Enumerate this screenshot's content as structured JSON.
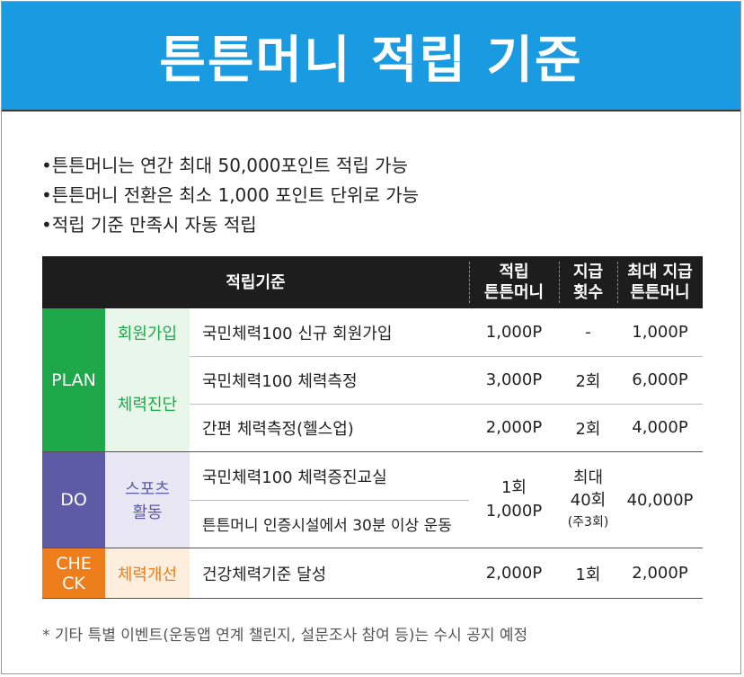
{
  "title": "튼튼머니 적립 기준",
  "bullets": [
    "•튼튼머니는 연간 최대 50,000포인트 적립 가능",
    "•튼튼머니 전환은 최소 1,000 포인트 단위로 가능",
    "•적립 기준 만족시 자동 적립"
  ],
  "table": {
    "headers": {
      "criteria": "적립기준",
      "earn_line1": "적립",
      "earn_line2": "튼튼머니",
      "count_line1": "지급",
      "count_line2": "횟수",
      "max_line1": "최대 지급",
      "max_line2": "튼튼머니"
    },
    "phases": {
      "plan": "PLAN",
      "do": "DO",
      "check_line1": "CHE",
      "check_line2": "CK"
    },
    "categories": {
      "signup": "회원가입",
      "diagnosis": "체력진단",
      "sports_line1": "스포츠",
      "sports_line2": "활동",
      "improve": "체력개선"
    },
    "rows": [
      {
        "content": "국민체력100 신규 회원가입",
        "earn": "1,000P",
        "count": "-",
        "max": "1,000P"
      },
      {
        "content": "국민체력100 체력측정",
        "earn": "3,000P",
        "count": "2회",
        "max": "6,000P"
      },
      {
        "content": "간편 체력측정(헬스업)",
        "earn": "2,000P",
        "count": "2회",
        "max": "4,000P"
      },
      {
        "content": "국민체력100 체력증진교실"
      },
      {
        "content": "튼튼머니 인증시설에서 30분 이상 운동"
      },
      {
        "content": "건강체력기준 달성",
        "earn": "2,000P",
        "count": "1회",
        "max": "2,000P"
      }
    ],
    "sports_merged": {
      "earn_line1": "1회",
      "earn_line2": "1,000P",
      "count_line1": "최대",
      "count_line2": "40회",
      "count_line3": "(주3회)",
      "max": "40,000P"
    }
  },
  "note": "* 기타 특별 이벤트(운동앱 연계 챌린지, 설문조사 참여 등)는 수시 공지 예정",
  "colors": {
    "header_bg": "#1a9ae0",
    "plan": "#1fa84a",
    "plan_light": "#e9f6ea",
    "do": "#5d5aa6",
    "do_light": "#e8e7f3",
    "check": "#ee7d1b",
    "check_light": "#fdeedd"
  }
}
